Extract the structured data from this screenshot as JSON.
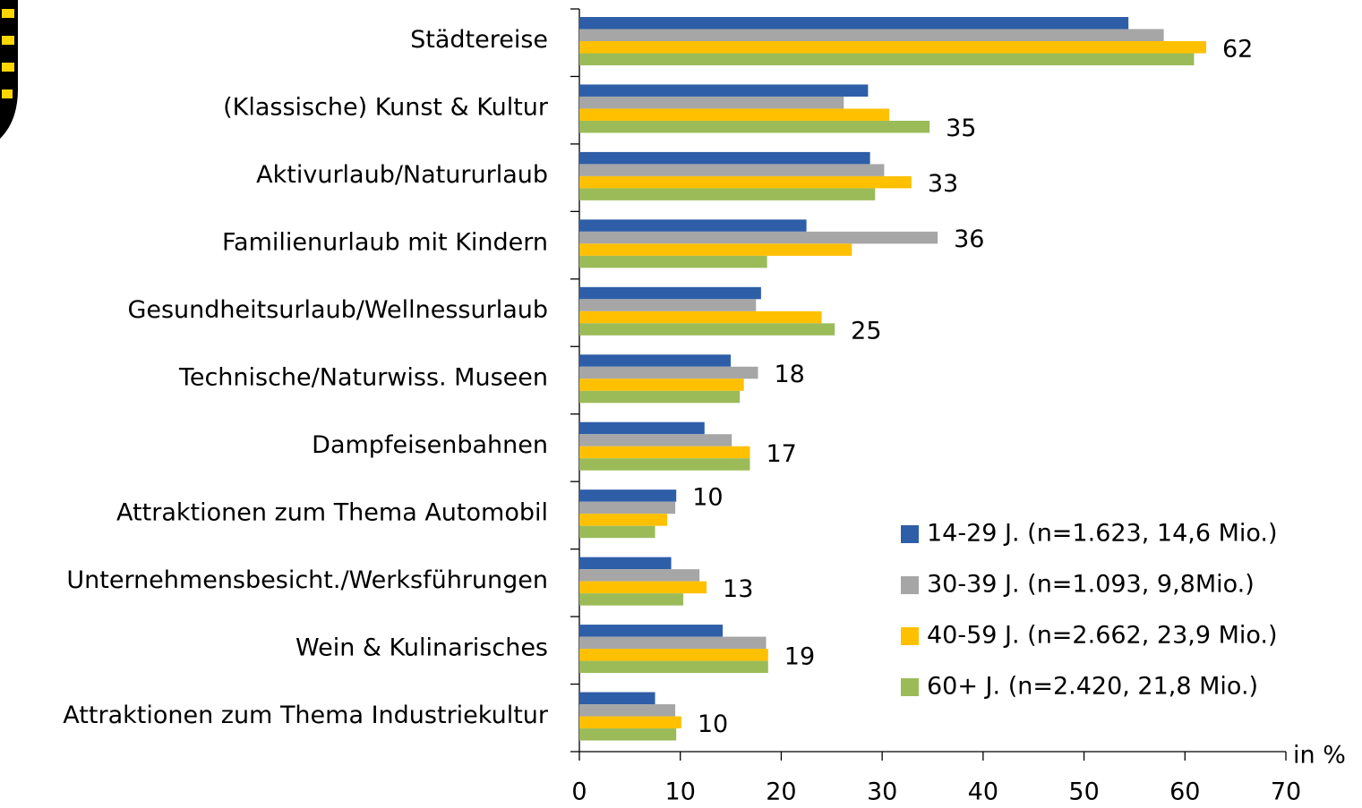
{
  "chart_data": {
    "type": "hbar",
    "categories": [
      "Städtereise",
      "(Klassische) Kunst & Kultur",
      "Aktivurlaub/Natururlaub",
      "Familienurlaub mit Kindern",
      "Gesundheitsurlaub/Wellnessurlaub",
      "Technische/Naturwiss. Museen",
      "Dampfeisenbahnen",
      "Attraktionen zum Thema Automobil",
      "Unternehmensbesicht./Werksführungen",
      "Wein & Kulinarisches",
      "Attraktionen zum Thema Industriekultur"
    ],
    "series": [
      {
        "name": "14-29 J. (n=1.623, 14,6 Mio.)",
        "color": "#2e5ea8",
        "values": [
          54.4,
          28.6,
          28.8,
          22.5,
          18.0,
          15.0,
          12.4,
          9.6,
          9.1,
          14.2,
          7.5
        ],
        "value_labels": [
          null,
          null,
          null,
          null,
          null,
          null,
          null,
          "10",
          null,
          null,
          null
        ]
      },
      {
        "name": "30-39 J. (n=1.093, 9,8Mio.)",
        "color": "#a6a6a6",
        "values": [
          57.9,
          26.2,
          30.2,
          35.5,
          17.5,
          17.7,
          15.1,
          9.5,
          11.9,
          18.5,
          9.5
        ],
        "value_labels": [
          null,
          null,
          null,
          "36",
          null,
          "18",
          null,
          null,
          null,
          null,
          null
        ]
      },
      {
        "name": "40-59 J. (n=2.662, 23,9 Mio.)",
        "color": "#ffc000",
        "values": [
          62.1,
          30.7,
          32.9,
          27.0,
          24.0,
          16.3,
          16.9,
          8.7,
          12.6,
          18.7,
          10.1
        ],
        "value_labels": [
          "62",
          null,
          "33",
          null,
          null,
          null,
          "17",
          null,
          "13",
          "19",
          "10"
        ]
      },
      {
        "name": "60+ J. (n=2.420, 21,8 Mio.)",
        "color": "#9bbb59",
        "values": [
          60.9,
          34.7,
          29.3,
          18.6,
          25.3,
          15.9,
          16.9,
          7.5,
          10.3,
          18.7,
          9.6
        ],
        "value_labels": [
          null,
          "35",
          null,
          null,
          "25",
          null,
          null,
          null,
          null,
          null,
          null
        ]
      }
    ],
    "xlim": [
      0,
      70
    ],
    "xticks": [
      0,
      10,
      20,
      30,
      40,
      50,
      60,
      70
    ],
    "x_axis_label": "in %",
    "legend": "lower right"
  }
}
